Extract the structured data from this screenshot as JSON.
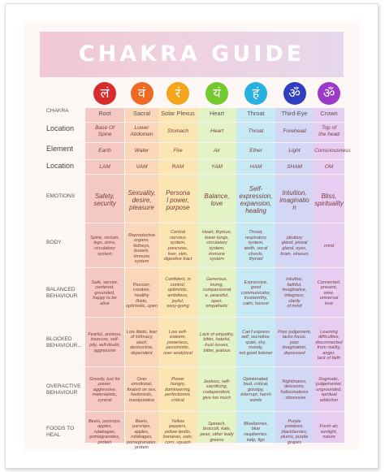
{
  "title": "CHAKRA GUIDE",
  "chakras": [
    {
      "name": "Root",
      "symbol": "लं",
      "color": "#d82c2c",
      "tint": "#f5c9c3"
    },
    {
      "name": "Sacral",
      "symbol": "वं",
      "color": "#ee6a23",
      "tint": "#fad6bb"
    },
    {
      "name": "Solar Plexus",
      "symbol": "रं",
      "color": "#f4a51c",
      "tint": "#fbe5b3"
    },
    {
      "name": "Heart",
      "symbol": "यं",
      "color": "#74c92e",
      "tint": "#e4f3c6"
    },
    {
      "name": "Throat",
      "symbol": "हं",
      "color": "#28b1e0",
      "tint": "#c6e9f4"
    },
    {
      "name": "Third-Eye",
      "symbol": "ॐ",
      "color": "#2f3fc2",
      "tint": "#d3d7f5"
    },
    {
      "name": "Crown",
      "symbol": "ॐ",
      "color": "#9b39c8",
      "tint": "#e7cdf1"
    }
  ],
  "rows": {
    "chakra": "CHAKRA",
    "location": "Location",
    "element": "Element",
    "location2": "Location",
    "emotions": "EMOTIONS",
    "body": "BODY",
    "balanced": "BALANCED\nBEHAVIOUR",
    "blocked": "BLOCKED\nBEHAVIOUR...",
    "overactive": "OVERACTIVE\nBEHAVIOUR",
    "foods": "FOODS TO\nHEAL"
  },
  "location": [
    "Base Of\nSpine",
    "Lower\nAbdomen",
    "Stomach",
    "Heart",
    "Throat",
    "Forehead",
    "Top of\nthe head"
  ],
  "element": [
    "Earth",
    "Water",
    "Fire",
    "Air",
    "Ether",
    "Light",
    "Consciousness"
  ],
  "mantra": [
    "LAM",
    "VAM",
    "RAM",
    "YAM",
    "HAM",
    "SHAM",
    "OM"
  ],
  "emotions": [
    "Safety,\nsecurity",
    "Sexuality,\ndesire,\npleasure",
    "Persona\nl power,\npurpose",
    "Balance,\nlove",
    "Self-\nexpression,\nexpansion,\nhealing",
    "Intuition,\nimaginatio\nn",
    "Bliss,\nspirituality"
  ],
  "body": [
    "Spine, rectum,\nlegs, arms,\ncirculatory\nsystem",
    "Reproductive\norgans,\nkidneys,\nbowels,\nimmune system",
    "Central\nnervous\nsystem,\npancreas,\nliver, skin,\ndigestive tract",
    "Heart, thymus,\nlower lungs,\ncirculatory\nsystem,\nimmune\nsystem",
    "Throat,\nrespiratory\nsystem,\nteeth, vocal\nchords,\nthyroid",
    "pituitary\ngland, pineal\ngland, eyes,\nbrain, sinuses",
    "mind"
  ],
  "balanced": [
    "Safe, secure,\ncentered,\ngrounded,\nhappy to be\nalive",
    "Passion,\ncreative, healthy\nlibido,\noptimistic, open",
    "Confident, in\ncontrol,\noptimistic,\nambitious,\njoyful,\neasy-going",
    "Generous,\nloving,\ncompassionat\ne, peaceful,\nopen,\nempathetic",
    "Expressive,\ngood\ncommunicator,\ntrustworthy,\ncalm, honest",
    "Intuitive,\nfaithful,\nimaginative,\nintegrous,\nclarity\nof mind",
    "Connected,\npresent,\nwise,\nuniversal\nlove"
  ],
  "blocked": [
    "Fearful, anxious,\ninsecure, self-\npity, self-doubt,\naggressive",
    "Low libido, fear\nof intimacy,\naloof,\ndestructive,\ndependent",
    "Low self-\nesteem,\npowerless,\npessimistic,\nover analytical",
    "Lack of empathy,\nbitter, hateful,\ntrust issues,\nbitter, jealous",
    "Can't express\nself, secretive,\nquiet, shy,\nmoody,\nnot good listener",
    "Poor judgement,\nlacks focus,\npoor\nimagination,\ndepressed",
    "Learning\ndifficulties,\ndisconnected\nfrom reality, anger,\nlack of faith"
  ],
  "overactive": [
    "Greedy, lust for\npower,\naggressive,\nmaterialistic,\ncynical",
    "Over\nemotional,\nfixated on sex,\nhedonistic,\nmanipulative",
    "Power\nhungry,\ndomineering,\nperfectionist,\ncritical",
    "Jealous, self-\nsacrificing,\ncodependent,\ngive too much",
    "Opinionated,\nloud, critical,\ngossipy,\ninterrupt, harsh\nwords",
    "Nightmares,\ndelusions,\nhallucinations\n, obsessive",
    "Dogmatic,\njudgemental,\nungrounded,\nspiritual\naddiction"
  ],
  "foods": [
    "Beets, parsnips,\napples,\nrutabagas,\npomegranates,\nprotein",
    "Beets, parsnips,\napples,\nrutabagas,\npomegranates,\nprotein",
    "Yellow\npeppers,\nyellow lentils,\nbananas, oats,\ncorn, squash",
    "Spinach,\nbroccoli, kale,\npeas, other leafy\ngreens",
    "Blueberries,\nblue\nraspberries,\nkelp, figs",
    "Purple\npotatoes,\nblackberries,\nplums, purple\ngrapes",
    "Fresh air,\nsunlight,\nnature"
  ]
}
